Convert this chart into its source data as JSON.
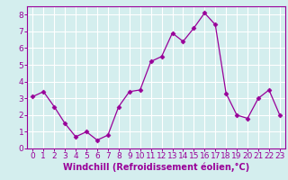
{
  "x": [
    0,
    1,
    2,
    3,
    4,
    5,
    6,
    7,
    8,
    9,
    10,
    11,
    12,
    13,
    14,
    15,
    16,
    17,
    18,
    19,
    20,
    21,
    22,
    23
  ],
  "y": [
    3.1,
    3.4,
    2.5,
    1.5,
    0.7,
    1.0,
    0.5,
    0.8,
    2.5,
    3.4,
    3.5,
    5.2,
    5.5,
    6.9,
    6.4,
    7.2,
    8.1,
    7.4,
    3.3,
    2.0,
    1.8,
    3.0,
    3.5,
    2.0
  ],
  "line_color": "#990099",
  "marker": "D",
  "marker_size": 2.5,
  "bg_color": "#d4eeee",
  "grid_color": "#ffffff",
  "xlabel": "Windchill (Refroidissement éolien,°C)",
  "xlabel_fontsize": 7,
  "tick_fontsize": 6.5,
  "ylim": [
    0,
    8.5
  ],
  "xlim": [
    -0.5,
    23.5
  ],
  "yticks": [
    0,
    1,
    2,
    3,
    4,
    5,
    6,
    7,
    8
  ],
  "xticks": [
    0,
    1,
    2,
    3,
    4,
    5,
    6,
    7,
    8,
    9,
    10,
    11,
    12,
    13,
    14,
    15,
    16,
    17,
    18,
    19,
    20,
    21,
    22,
    23
  ]
}
